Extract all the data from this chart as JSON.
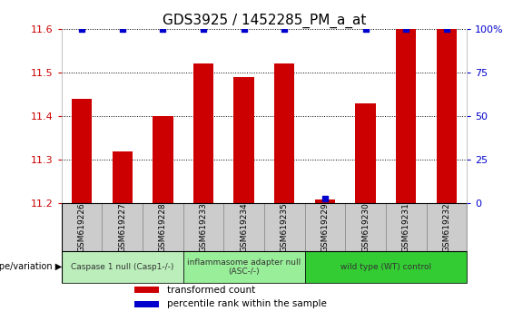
{
  "title": "GDS3925 / 1452285_PM_a_at",
  "samples": [
    "GSM619226",
    "GSM619227",
    "GSM619228",
    "GSM619233",
    "GSM619234",
    "GSM619235",
    "GSM619229",
    "GSM619230",
    "GSM619231",
    "GSM619232"
  ],
  "red_values": [
    11.44,
    11.32,
    11.4,
    11.52,
    11.49,
    11.52,
    11.21,
    11.43,
    11.6,
    11.6
  ],
  "blue_values": [
    100,
    100,
    100,
    100,
    100,
    100,
    3,
    100,
    100,
    100
  ],
  "ylim": [
    11.2,
    11.6
  ],
  "yticks": [
    11.2,
    11.3,
    11.4,
    11.5,
    11.6
  ],
  "right_yticks": [
    0,
    25,
    50,
    75,
    100
  ],
  "right_ylim": [
    0,
    100
  ],
  "bar_color": "#cc0000",
  "dot_color": "#0000cc",
  "title_fontsize": 11,
  "groups": [
    {
      "label": "Caspase 1 null (Casp1-/-)",
      "start": 0,
      "end": 3,
      "color": "#bbeebb"
    },
    {
      "label": "inflammasome adapter null\n(ASC-/-)",
      "start": 3,
      "end": 6,
      "color": "#99ee99"
    },
    {
      "label": "wild type (WT) control",
      "start": 6,
      "end": 10,
      "color": "#33cc33"
    }
  ],
  "bar_width": 0.5,
  "dot_size": 5,
  "left_label_color": "#cc0000",
  "right_label_color": "#0000cc",
  "legend_items": [
    {
      "color": "#cc0000",
      "label": "transformed count"
    },
    {
      "color": "#0000cc",
      "label": "percentile rank within the sample"
    }
  ],
  "sample_box_color": "#cccccc",
  "sample_box_edge": "#888888"
}
